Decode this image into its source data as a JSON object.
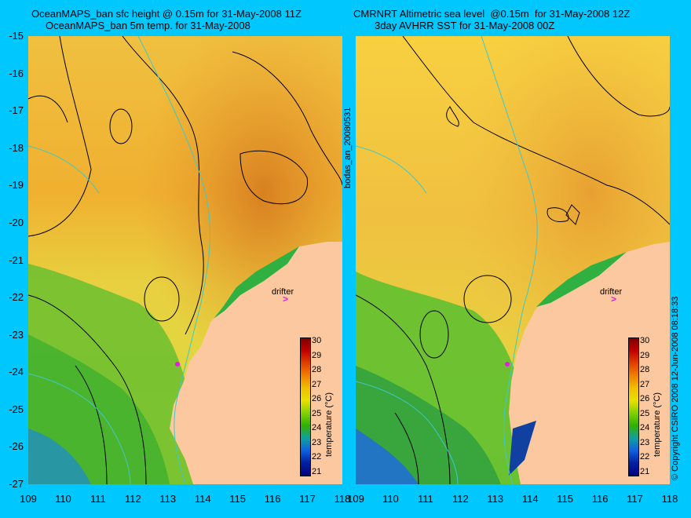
{
  "left_panel": {
    "title_line1": "OceanMAPS_ban sfc height @ 0.15m for 31-May-2008 11Z",
    "title_line2": "OceanMAPS_ban 5m temp. for 31-May-2008"
  },
  "right_panel": {
    "title_line1": "CMRNRT Altimetric sea level  @0.15m  for 31-May-2008 12Z",
    "title_line2": "3day AVHRR SST for 31-May-2008 00Z"
  },
  "y_ticks": [
    "-15",
    "-16",
    "-17",
    "-18",
    "-19",
    "-20",
    "-21",
    "-22",
    "-23",
    "-24",
    "-25",
    "-26",
    "-27"
  ],
  "x_ticks": [
    "109",
    "110",
    "111",
    "112",
    "113",
    "114",
    "115",
    "116",
    "117",
    "118"
  ],
  "colorbar": {
    "ticks": [
      "30",
      "29",
      "28",
      "27",
      "26",
      "25",
      "24",
      "23",
      "22",
      "21"
    ],
    "label": "temperature (°C)",
    "range": [
      20,
      30
    ]
  },
  "drifter_label": "drifter",
  "drifter_mark": ">",
  "vertical_id": "bodas_an_20080531",
  "copyright": "© Copyright CSIRO 2008   12-Jun-2008 08:18:33",
  "colors": {
    "background": "#00c8ff",
    "land": "#fcc8a0",
    "contour": "#000000",
    "isobath": "#40c8c8",
    "drifter": "#e020e0"
  },
  "map_extent": {
    "lon": [
      109,
      118
    ],
    "lat": [
      -27,
      -15
    ]
  }
}
